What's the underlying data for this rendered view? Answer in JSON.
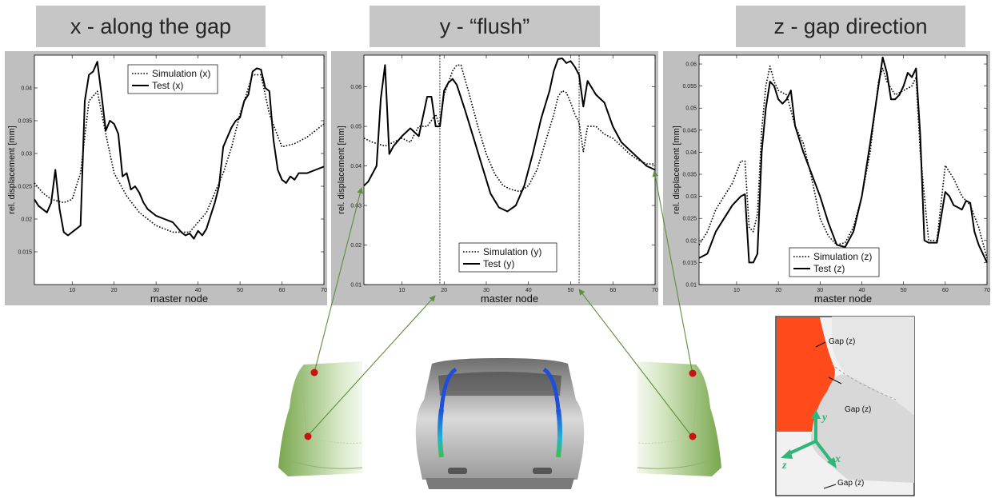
{
  "titles": [
    "x - along the gap",
    "y - “flush”",
    "z - gap direction"
  ],
  "colors": {
    "title_bg": "#c6c6c6",
    "panel_bg": "#bfbfbf",
    "arrow": "#5b8f3a",
    "seal_red": "#ff4a1c",
    "marker": "#cc1111",
    "axis_green": "#2fb67a"
  },
  "inset": {
    "gap_labels": [
      "Gap (z)",
      "Gap (z)",
      "Gap (z)"
    ],
    "axes": [
      "y",
      "x",
      "z"
    ]
  },
  "chart_data": [
    {
      "type": "line",
      "xlabel": "master node",
      "ylabel": "rel. displacement [mm]",
      "xlim": [
        1,
        70
      ],
      "ylim": [
        0.01,
        0.045
      ],
      "xticks": [
        10,
        20,
        30,
        40,
        50,
        60,
        70
      ],
      "yticks": [
        0.015,
        0.02,
        0.025,
        0.03,
        0.035,
        0.04
      ],
      "ytick_labels": [
        "0.015",
        "0.02",
        "0.025",
        "0.03",
        "0.035",
        "0.04"
      ],
      "legend": "top-center",
      "series": [
        {
          "name": "Simulation (x)",
          "style": "dotted",
          "x": [
            1,
            3,
            5,
            8,
            10,
            12,
            14,
            16,
            18,
            20,
            23,
            26,
            30,
            34,
            38,
            42,
            46,
            48,
            50,
            53,
            55,
            57,
            60,
            63,
            66,
            70
          ],
          "y": [
            0.0255,
            0.024,
            0.023,
            0.0225,
            0.023,
            0.027,
            0.038,
            0.0395,
            0.033,
            0.027,
            0.0235,
            0.021,
            0.019,
            0.018,
            0.018,
            0.021,
            0.027,
            0.031,
            0.036,
            0.042,
            0.042,
            0.036,
            0.031,
            0.0315,
            0.0325,
            0.0345
          ]
        },
        {
          "name": "Test (x)",
          "style": "solid",
          "x": [
            1,
            2,
            4,
            5,
            6,
            7,
            8,
            9,
            10,
            11,
            12,
            13,
            14,
            15,
            16,
            17,
            18,
            19,
            20,
            21,
            22,
            23,
            24,
            25,
            26,
            27,
            28,
            30,
            32,
            34,
            36,
            37,
            38,
            39,
            40,
            41,
            42,
            43,
            44,
            45,
            46,
            47,
            48,
            49,
            50,
            51,
            52,
            53,
            54,
            55,
            56,
            57,
            58,
            59,
            60,
            61,
            62,
            63,
            64,
            66,
            68,
            70
          ],
          "y": [
            0.023,
            0.022,
            0.021,
            0.0225,
            0.0275,
            0.0215,
            0.018,
            0.0175,
            0.018,
            0.0185,
            0.019,
            0.038,
            0.042,
            0.0425,
            0.044,
            0.039,
            0.0335,
            0.035,
            0.0345,
            0.033,
            0.0265,
            0.027,
            0.0245,
            0.025,
            0.024,
            0.0225,
            0.0215,
            0.0205,
            0.02,
            0.0195,
            0.018,
            0.0175,
            0.0178,
            0.017,
            0.0182,
            0.0175,
            0.0185,
            0.0205,
            0.0225,
            0.025,
            0.031,
            0.0325,
            0.034,
            0.035,
            0.0355,
            0.038,
            0.039,
            0.0425,
            0.043,
            0.0428,
            0.04,
            0.0395,
            0.032,
            0.0275,
            0.026,
            0.0255,
            0.0265,
            0.026,
            0.027,
            0.027,
            0.0275,
            0.028
          ]
        }
      ]
    },
    {
      "type": "line",
      "xlabel": "master node",
      "ylabel": "rel. displacement [mm]",
      "xlim": [
        1,
        70
      ],
      "ylim": [
        0.01,
        0.068
      ],
      "xticks": [
        10,
        20,
        30,
        40,
        50,
        60,
        70
      ],
      "yticks": [
        0.01,
        0.02,
        0.03,
        0.04,
        0.05,
        0.06
      ],
      "ytick_labels": [
        "0.01",
        "0.02",
        "0.03",
        "0.04",
        "0.05",
        "0.06"
      ],
      "vlines": [
        19,
        52
      ],
      "legend": "bottom-right",
      "series": [
        {
          "name": "Simulation (y)",
          "style": "dotted",
          "x": [
            1,
            3,
            6,
            8,
            10,
            12,
            14,
            16,
            18,
            19,
            20,
            22,
            23,
            24,
            26,
            28,
            30,
            32,
            34,
            36,
            38,
            40,
            42,
            44,
            46,
            47,
            48,
            49,
            50,
            51,
            52,
            53,
            54,
            56,
            58,
            60,
            62,
            64,
            66,
            68,
            70
          ],
          "y": [
            0.047,
            0.046,
            0.045,
            0.046,
            0.047,
            0.046,
            0.05,
            0.05,
            0.053,
            0.05,
            0.058,
            0.064,
            0.0655,
            0.0655,
            0.058,
            0.05,
            0.043,
            0.038,
            0.035,
            0.034,
            0.0335,
            0.035,
            0.039,
            0.046,
            0.053,
            0.0575,
            0.059,
            0.0585,
            0.056,
            0.053,
            0.051,
            0.0435,
            0.05,
            0.05,
            0.048,
            0.047,
            0.045,
            0.043,
            0.0415,
            0.0405,
            0.0405
          ]
        },
        {
          "name": "Test (y)",
          "style": "solid",
          "x": [
            1,
            2,
            4,
            5,
            6,
            7,
            8,
            10,
            12,
            14,
            16,
            17,
            18,
            19,
            20,
            21,
            22,
            23,
            25,
            27,
            29,
            31,
            33,
            35,
            37,
            39,
            41,
            43,
            45,
            46,
            47,
            48,
            49,
            50,
            51,
            52,
            53,
            54,
            56,
            58,
            60,
            62,
            64,
            66,
            68,
            70
          ],
          "y": [
            0.035,
            0.036,
            0.04,
            0.057,
            0.0655,
            0.043,
            0.045,
            0.0475,
            0.0495,
            0.0475,
            0.0575,
            0.0575,
            0.05,
            0.05,
            0.059,
            0.061,
            0.062,
            0.0605,
            0.054,
            0.047,
            0.04,
            0.033,
            0.0295,
            0.0285,
            0.03,
            0.035,
            0.043,
            0.052,
            0.059,
            0.064,
            0.067,
            0.0672,
            0.066,
            0.0665,
            0.065,
            0.063,
            0.055,
            0.0615,
            0.058,
            0.056,
            0.05,
            0.046,
            0.044,
            0.042,
            0.04,
            0.039
          ]
        }
      ]
    },
    {
      "type": "line",
      "xlabel": "master node",
      "ylabel": "rel. displacement [mm]",
      "xlim": [
        1,
        70
      ],
      "ylim": [
        0.01,
        0.062
      ],
      "xticks": [
        10,
        20,
        30,
        40,
        50,
        60,
        70
      ],
      "yticks": [
        0.01,
        0.015,
        0.02,
        0.025,
        0.03,
        0.035,
        0.04,
        0.045,
        0.05,
        0.055,
        0.06
      ],
      "ytick_labels": [
        "0.01",
        "0.015",
        "0.02",
        "0.025",
        "0.03",
        "0.035",
        "0.04",
        "0.045",
        "0.05",
        "0.055",
        "0.06"
      ],
      "legend": "bottom-center",
      "series": [
        {
          "name": "Simulation (z)",
          "style": "dotted",
          "x": [
            1,
            3,
            5,
            7,
            9,
            11,
            12,
            13,
            14,
            15,
            16,
            17,
            18,
            19,
            20,
            22,
            24,
            26,
            28,
            30,
            32,
            34,
            36,
            38,
            40,
            42,
            44,
            45,
            46,
            48,
            50,
            52,
            53,
            54,
            56,
            58,
            60,
            62,
            64,
            66,
            68,
            70
          ],
          "y": [
            0.019,
            0.022,
            0.027,
            0.03,
            0.033,
            0.038,
            0.038,
            0.023,
            0.022,
            0.026,
            0.045,
            0.055,
            0.0595,
            0.056,
            0.054,
            0.053,
            0.046,
            0.042,
            0.034,
            0.025,
            0.021,
            0.019,
            0.0195,
            0.023,
            0.03,
            0.04,
            0.056,
            0.059,
            0.056,
            0.053,
            0.054,
            0.055,
            0.057,
            0.04,
            0.02,
            0.02,
            0.037,
            0.034,
            0.03,
            0.028,
            0.023,
            0.016
          ]
        },
        {
          "name": "Test (z)",
          "style": "solid",
          "x": [
            1,
            3,
            5,
            7,
            9,
            11,
            12,
            13,
            14,
            15,
            16,
            17,
            18,
            19,
            20,
            21,
            22,
            23,
            24,
            26,
            28,
            30,
            32,
            34,
            36,
            38,
            40,
            42,
            44,
            45,
            46,
            47,
            48,
            49,
            50,
            51,
            52,
            53,
            54,
            55,
            56,
            58,
            60,
            61,
            62,
            63,
            64,
            65,
            66,
            67,
            68,
            70
          ],
          "y": [
            0.016,
            0.017,
            0.022,
            0.025,
            0.028,
            0.03,
            0.0305,
            0.015,
            0.015,
            0.017,
            0.04,
            0.05,
            0.056,
            0.055,
            0.052,
            0.051,
            0.052,
            0.054,
            0.046,
            0.04,
            0.035,
            0.03,
            0.024,
            0.019,
            0.0185,
            0.022,
            0.03,
            0.042,
            0.055,
            0.0615,
            0.058,
            0.052,
            0.052,
            0.053,
            0.055,
            0.058,
            0.057,
            0.059,
            0.044,
            0.02,
            0.0195,
            0.0195,
            0.031,
            0.03,
            0.028,
            0.0275,
            0.027,
            0.029,
            0.0285,
            0.022,
            0.019,
            0.015
          ]
        }
      ]
    }
  ]
}
